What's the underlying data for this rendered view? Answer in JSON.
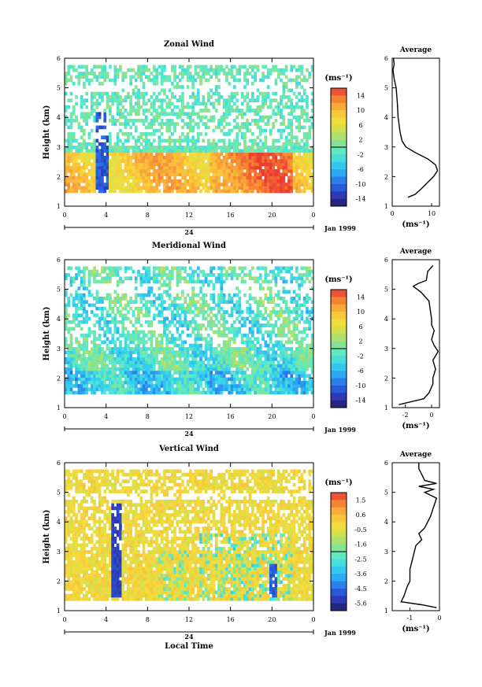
{
  "chart_data": [
    {
      "type": "heatmap",
      "title": "Zonal Wind",
      "ylabel": "Height (km)",
      "xlim": [
        0,
        24
      ],
      "ylim": [
        1,
        6
      ],
      "x_ticks": [
        "0",
        "4",
        "8",
        "12",
        "16",
        "20",
        "0"
      ],
      "y_ticks": [
        "1",
        "2",
        "3",
        "4",
        "5",
        "6"
      ],
      "date_mark": "24",
      "date_label": "Jan 1999",
      "colorbar": {
        "unit": "(ms⁻¹)",
        "ticks": [
          "14",
          "10",
          "6",
          "2",
          "-2",
          "-6",
          "-10",
          "-14"
        ],
        "range": [
          -16,
          16
        ]
      },
      "profile": {
        "title": "Average",
        "xlabel": "(ms⁻¹)",
        "x_ticks": [
          "0",
          "10"
        ],
        "xlim": [
          0,
          12
        ],
        "points": [
          [
            4.0,
            1.3
          ],
          [
            5.8,
            1.4
          ],
          [
            7.5,
            1.6
          ],
          [
            9.0,
            1.8
          ],
          [
            10.5,
            2.0
          ],
          [
            11.5,
            2.2
          ],
          [
            11.0,
            2.4
          ],
          [
            9.0,
            2.6
          ],
          [
            6.0,
            2.8
          ],
          [
            3.5,
            3.0
          ],
          [
            2.5,
            3.2
          ],
          [
            2.0,
            3.5
          ],
          [
            1.7,
            3.8
          ],
          [
            1.5,
            4.0
          ],
          [
            1.3,
            4.5
          ],
          [
            1.0,
            5.0
          ],
          [
            0.5,
            5.3
          ],
          [
            0.2,
            5.6
          ],
          [
            0.5,
            5.8
          ],
          [
            0.3,
            6.0
          ]
        ]
      }
    },
    {
      "type": "heatmap",
      "title": "Meridional Wind",
      "ylabel": "Height (km)",
      "xlim": [
        0,
        24
      ],
      "ylim": [
        1,
        6
      ],
      "x_ticks": [
        "0",
        "4",
        "8",
        "12",
        "16",
        "20",
        "0"
      ],
      "y_ticks": [
        "1",
        "2",
        "3",
        "4",
        "5",
        "6"
      ],
      "date_mark": "24",
      "date_label": "Jan 1999",
      "colorbar": {
        "unit": "(ms⁻¹)",
        "ticks": [
          "14",
          "10",
          "6",
          "2",
          "-2",
          "-6",
          "-10",
          "-14"
        ],
        "range": [
          -16,
          16
        ]
      },
      "profile": {
        "title": "Average",
        "xlabel": "(ms⁻¹)",
        "x_ticks": [
          "-2",
          "0"
        ],
        "xlim": [
          -3,
          0.6
        ],
        "points": [
          [
            -2.5,
            1.1
          ],
          [
            -0.6,
            1.3
          ],
          [
            -0.2,
            1.5
          ],
          [
            0.1,
            1.8
          ],
          [
            0.1,
            2.0
          ],
          [
            0.3,
            2.3
          ],
          [
            0.1,
            2.6
          ],
          [
            0.5,
            2.9
          ],
          [
            0.2,
            3.1
          ],
          [
            0.0,
            3.3
          ],
          [
            0.2,
            3.6
          ],
          [
            0.0,
            3.8
          ],
          [
            0.0,
            4.0
          ],
          [
            -0.1,
            4.3
          ],
          [
            -0.2,
            4.6
          ],
          [
            -0.8,
            4.9
          ],
          [
            -1.4,
            5.1
          ],
          [
            -1.0,
            5.2
          ],
          [
            -0.4,
            5.3
          ],
          [
            -0.3,
            5.6
          ],
          [
            0.1,
            5.8
          ]
        ]
      }
    },
    {
      "type": "heatmap",
      "title": "Vertical Wind",
      "xlabel": "Local Time",
      "ylabel": "Height (km)",
      "xlim": [
        0,
        24
      ],
      "ylim": [
        1,
        6
      ],
      "x_ticks": [
        "0",
        "4",
        "8",
        "12",
        "16",
        "20",
        "0"
      ],
      "y_ticks": [
        "1",
        "2",
        "3",
        "4",
        "5",
        "6"
      ],
      "date_mark": "24",
      "date_label": "Jan 1999",
      "colorbar": {
        "unit": "(ms⁻¹)",
        "ticks": [
          "1.5",
          "0.6",
          "-0.5",
          "-1.6",
          "-2.5",
          "-3.6",
          "-4.5",
          "-5.6"
        ],
        "range": [
          -6,
          2
        ]
      },
      "profile": {
        "title": "Average",
        "xlabel": "(ms⁻¹)",
        "x_ticks": [
          "-1",
          "0"
        ],
        "xlim": [
          -1.6,
          0
        ],
        "points": [
          [
            -0.1,
            1.1
          ],
          [
            -0.6,
            1.2
          ],
          [
            -1.3,
            1.3
          ],
          [
            -1.2,
            1.5
          ],
          [
            -1.1,
            1.8
          ],
          [
            -1.0,
            2.0
          ],
          [
            -1.0,
            2.4
          ],
          [
            -0.9,
            2.8
          ],
          [
            -0.8,
            3.2
          ],
          [
            -0.6,
            3.4
          ],
          [
            -0.7,
            3.6
          ],
          [
            -0.5,
            3.8
          ],
          [
            -0.3,
            4.2
          ],
          [
            -0.2,
            4.5
          ],
          [
            -0.1,
            4.8
          ],
          [
            -0.5,
            5.0
          ],
          [
            -0.2,
            5.1
          ],
          [
            -0.7,
            5.2
          ],
          [
            -0.1,
            5.3
          ],
          [
            -0.5,
            5.4
          ],
          [
            -0.7,
            5.8
          ],
          [
            -0.7,
            6.0
          ]
        ]
      }
    }
  ]
}
